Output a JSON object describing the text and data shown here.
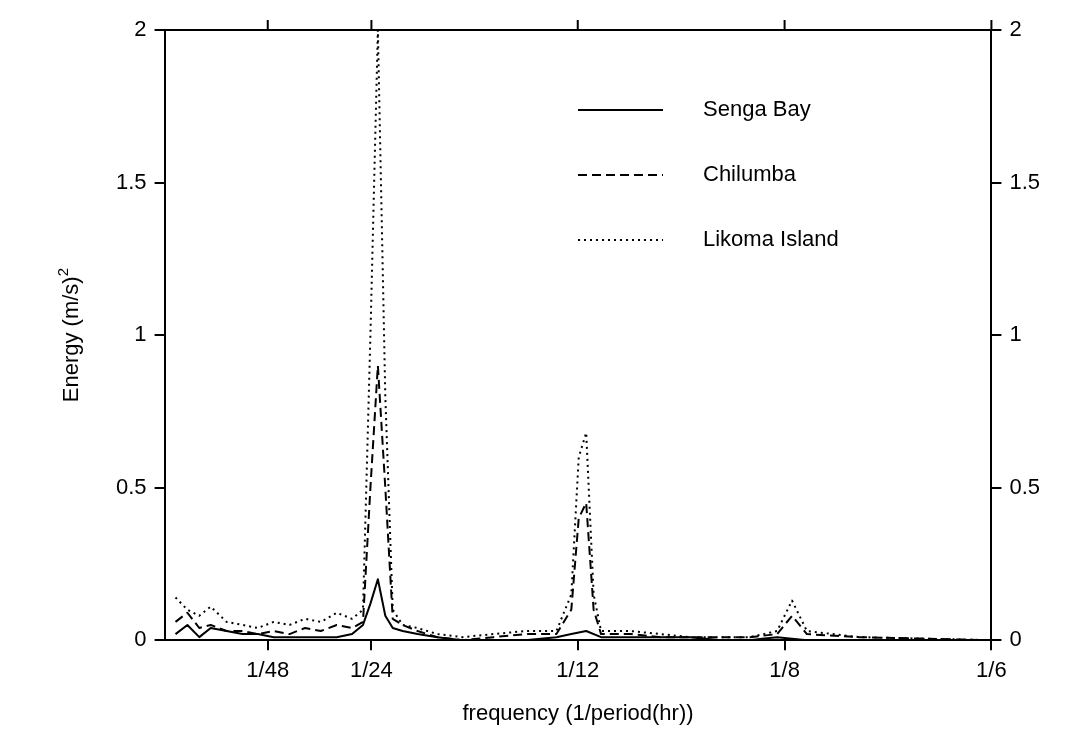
{
  "chart_data": {
    "type": "line",
    "xlabel": "frequency (1/period(hr))",
    "ylabel": "Energy (m/s)$^{2}$",
    "xlim": [
      0,
      0.1667
    ],
    "xticks": [
      {
        "value": 0.0208,
        "label": "1/48"
      },
      {
        "value": 0.0417,
        "label": "1/24"
      },
      {
        "value": 0.0833,
        "label": "1/12"
      },
      {
        "value": 0.125,
        "label": "1/8"
      },
      {
        "value": 0.1667,
        "label": "1/6"
      }
    ],
    "ylim": [
      0,
      2
    ],
    "yticks": [
      0,
      0.5,
      1,
      1.5,
      2
    ],
    "y2lim": [
      0,
      2
    ],
    "y2ticks": [
      0,
      0.5,
      1,
      1.5,
      2
    ],
    "grid": false,
    "legend": "top right",
    "series": [
      {
        "name": "Senga Bay",
        "color": "#000000",
        "line_style": "solid",
        "x": [
          0.0022,
          0.0046,
          0.007,
          0.0093,
          0.0125,
          0.0157,
          0.0188,
          0.022,
          0.0252,
          0.0283,
          0.0315,
          0.0347,
          0.0378,
          0.04,
          0.0415,
          0.043,
          0.0445,
          0.046,
          0.048,
          0.051,
          0.055,
          0.06,
          0.0663,
          0.0727,
          0.079,
          0.082,
          0.085,
          0.088,
          0.094,
          0.1,
          0.106,
          0.112,
          0.118,
          0.1235,
          0.1295,
          0.1667
        ],
        "values": [
          0.02,
          0.05,
          0.01,
          0.04,
          0.03,
          0.02,
          0.02,
          0.01,
          0.01,
          0.01,
          0.01,
          0.01,
          0.02,
          0.05,
          0.12,
          0.2,
          0.08,
          0.04,
          0.03,
          0.02,
          0.01,
          0,
          0,
          0,
          0.01,
          0.02,
          0.03,
          0.01,
          0.01,
          0.01,
          0.01,
          0,
          0,
          0.01,
          0,
          0
        ]
      },
      {
        "name": "Chilumba",
        "color": "#000000",
        "line_style": "dashed",
        "x": [
          0.0022,
          0.0046,
          0.007,
          0.0093,
          0.0125,
          0.0157,
          0.0188,
          0.022,
          0.0252,
          0.0283,
          0.0315,
          0.0347,
          0.0378,
          0.04,
          0.0415,
          0.043,
          0.0445,
          0.046,
          0.048,
          0.051,
          0.055,
          0.06,
          0.0663,
          0.0727,
          0.079,
          0.082,
          0.0835,
          0.085,
          0.0865,
          0.088,
          0.094,
          0.1,
          0.106,
          0.112,
          0.118,
          0.1235,
          0.1265,
          0.1295,
          0.14,
          0.1667
        ],
        "values": [
          0.06,
          0.09,
          0.04,
          0.05,
          0.03,
          0.03,
          0.02,
          0.03,
          0.02,
          0.04,
          0.03,
          0.05,
          0.04,
          0.06,
          0.5,
          0.9,
          0.5,
          0.07,
          0.05,
          0.03,
          0.01,
          0,
          0.01,
          0.02,
          0.02,
          0.1,
          0.4,
          0.45,
          0.1,
          0.02,
          0.02,
          0.01,
          0.01,
          0.01,
          0.01,
          0.02,
          0.08,
          0.02,
          0.01,
          0
        ]
      },
      {
        "name": "Likoma Island",
        "color": "#000000",
        "line_style": "dotted",
        "x": [
          0.0022,
          0.0046,
          0.007,
          0.0093,
          0.0125,
          0.0157,
          0.0188,
          0.022,
          0.0252,
          0.0283,
          0.0315,
          0.0347,
          0.0378,
          0.04,
          0.0415,
          0.043,
          0.0445,
          0.046,
          0.048,
          0.051,
          0.055,
          0.06,
          0.0663,
          0.0727,
          0.079,
          0.082,
          0.0835,
          0.085,
          0.0865,
          0.088,
          0.094,
          0.1,
          0.106,
          0.112,
          0.118,
          0.1235,
          0.1265,
          0.1295,
          0.14,
          0.1667
        ],
        "values": [
          0.14,
          0.1,
          0.08,
          0.11,
          0.06,
          0.05,
          0.04,
          0.06,
          0.05,
          0.07,
          0.06,
          0.09,
          0.07,
          0.1,
          1,
          2,
          0.8,
          0.1,
          0.05,
          0.04,
          0.02,
          0.01,
          0.02,
          0.03,
          0.03,
          0.15,
          0.6,
          0.68,
          0.15,
          0.03,
          0.03,
          0.02,
          0.01,
          0.01,
          0.01,
          0.03,
          0.13,
          0.03,
          0.01,
          0
        ]
      }
    ]
  }
}
